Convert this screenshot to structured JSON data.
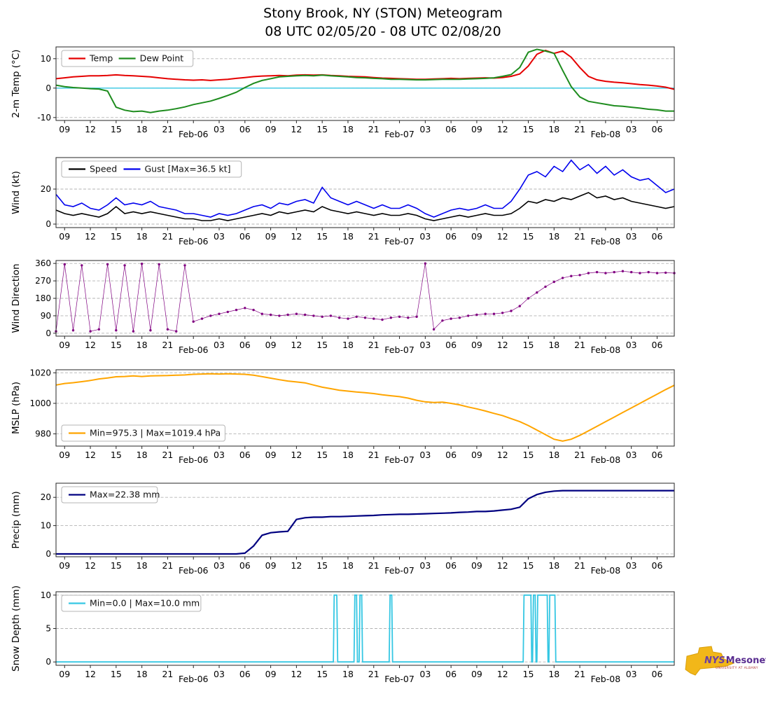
{
  "title": "Stony Brook, NY (STON) Meteogram",
  "subtitle": "08 UTC 02/05/20 - 08 UTC 02/08/20",
  "logo": {
    "nys": "NYS",
    "mesonet": "Mesonet",
    "tagline": "UNIVERSITY AT ALBANY"
  },
  "x_axis": {
    "range": [
      0,
      72
    ],
    "hours": [
      0,
      1,
      2,
      3,
      4,
      5,
      6,
      7,
      8,
      9,
      10,
      11,
      12,
      13,
      14,
      15,
      16,
      17,
      18,
      19,
      20,
      21,
      22,
      23,
      24,
      25,
      26,
      27,
      28,
      29,
      30,
      31,
      32,
      33,
      34,
      35,
      36,
      37,
      38,
      39,
      40,
      41,
      42,
      43,
      44,
      45,
      46,
      47,
      48,
      49,
      50,
      51,
      52,
      53,
      54,
      55,
      56,
      57,
      58,
      59,
      60,
      61,
      62,
      63,
      64,
      65,
      66,
      67,
      68,
      69,
      70,
      71,
      72
    ],
    "ticks": [
      {
        "pos": 1,
        "label": "09"
      },
      {
        "pos": 4,
        "label": "12"
      },
      {
        "pos": 7,
        "label": "15"
      },
      {
        "pos": 10,
        "label": "18"
      },
      {
        "pos": 13,
        "label": "21"
      },
      {
        "pos": 16,
        "label": "Feb-06",
        "date": true
      },
      {
        "pos": 19,
        "label": "03"
      },
      {
        "pos": 22,
        "label": "06"
      },
      {
        "pos": 25,
        "label": "09"
      },
      {
        "pos": 28,
        "label": "12"
      },
      {
        "pos": 31,
        "label": "15"
      },
      {
        "pos": 34,
        "label": "18"
      },
      {
        "pos": 37,
        "label": "21"
      },
      {
        "pos": 40,
        "label": "Feb-07",
        "date": true
      },
      {
        "pos": 43,
        "label": "03"
      },
      {
        "pos": 46,
        "label": "06"
      },
      {
        "pos": 49,
        "label": "09"
      },
      {
        "pos": 52,
        "label": "12"
      },
      {
        "pos": 55,
        "label": "15"
      },
      {
        "pos": 58,
        "label": "18"
      },
      {
        "pos": 61,
        "label": "21"
      },
      {
        "pos": 64,
        "label": "Feb-08",
        "date": true
      },
      {
        "pos": 67,
        "label": "03"
      },
      {
        "pos": 70,
        "label": "06"
      }
    ]
  },
  "chart_data": [
    {
      "id": "temp",
      "type": "line",
      "ylabel": "2-m Temp (°C)",
      "ylim": [
        -11,
        14
      ],
      "yticks": [
        -10,
        0,
        10
      ],
      "hline": {
        "y": 0,
        "color": "#35c7e3"
      },
      "legend": {
        "position": "upper-left",
        "entries": [
          {
            "label": "Temp",
            "color": "#e50000"
          },
          {
            "label": "Dew Point",
            "color": "#1e8c1e"
          }
        ]
      },
      "series": [
        {
          "name": "Temp",
          "color": "#e50000",
          "width": 2,
          "values": [
            3.2,
            3.5,
            3.8,
            4.0,
            4.2,
            4.2,
            4.3,
            4.5,
            4.3,
            4.2,
            4.0,
            3.8,
            3.5,
            3.2,
            3.0,
            2.8,
            2.7,
            2.8,
            2.6,
            2.8,
            3.0,
            3.3,
            3.6,
            3.9,
            4.1,
            4.2,
            4.3,
            4.2,
            4.4,
            4.5,
            4.4,
            4.5,
            4.3,
            4.2,
            4.0,
            3.9,
            3.8,
            3.6,
            3.4,
            3.3,
            3.2,
            3.1,
            3.0,
            3.0,
            3.1,
            3.2,
            3.3,
            3.2,
            3.3,
            3.4,
            3.5,
            3.4,
            3.6,
            4.0,
            4.8,
            7.5,
            11.5,
            12.8,
            11.8,
            12.6,
            10.5,
            7.0,
            4.0,
            2.8,
            2.3,
            2.0,
            1.8,
            1.5,
            1.2,
            1.0,
            0.7,
            0.3,
            -0.4
          ]
        },
        {
          "name": "Dew Point",
          "color": "#1e8c1e",
          "width": 2,
          "values": [
            1.0,
            0.5,
            0.2,
            0.0,
            -0.2,
            -0.3,
            -1.0,
            -6.5,
            -7.5,
            -8.0,
            -7.8,
            -8.3,
            -7.8,
            -7.5,
            -7.0,
            -6.4,
            -5.6,
            -5.0,
            -4.4,
            -3.5,
            -2.5,
            -1.4,
            0.2,
            1.6,
            2.6,
            3.2,
            3.8,
            4.0,
            4.2,
            4.3,
            4.2,
            4.4,
            4.2,
            4.0,
            3.8,
            3.6,
            3.5,
            3.3,
            3.2,
            3.0,
            3.0,
            2.9,
            2.8,
            2.8,
            2.9,
            3.0,
            3.0,
            3.0,
            3.1,
            3.2,
            3.3,
            3.5,
            4.0,
            4.6,
            7.0,
            12.2,
            13.2,
            12.6,
            11.8,
            6.0,
            0.5,
            -3.0,
            -4.5,
            -5.0,
            -5.5,
            -6.0,
            -6.2,
            -6.5,
            -6.8,
            -7.2,
            -7.4,
            -7.8,
            -7.8
          ]
        }
      ]
    },
    {
      "id": "wind",
      "type": "line",
      "ylabel": "Wind (kt)",
      "ylim": [
        -2,
        38
      ],
      "yticks": [
        0,
        20
      ],
      "legend": {
        "position": "upper-left",
        "entries": [
          {
            "label": "Speed",
            "color": "#000000"
          },
          {
            "label": "Gust [Max=36.5 kt]",
            "color": "#0000ee"
          }
        ]
      },
      "series": [
        {
          "name": "Speed",
          "color": "#000000",
          "width": 1.6,
          "values": [
            8,
            6,
            5,
            6,
            5,
            4,
            6,
            10,
            6,
            7,
            6,
            7,
            6,
            5,
            4,
            3,
            3,
            2,
            2,
            3,
            2,
            3,
            4,
            5,
            6,
            5,
            7,
            6,
            7,
            8,
            7,
            10,
            8,
            7,
            6,
            7,
            6,
            5,
            6,
            5,
            5,
            6,
            5,
            3,
            2,
            3,
            4,
            5,
            4,
            5,
            6,
            5,
            5,
            6,
            9,
            13,
            12,
            14,
            13,
            15,
            14,
            16,
            18,
            15,
            16,
            14,
            15,
            13,
            12,
            11,
            10,
            9,
            10
          ]
        },
        {
          "name": "Gust",
          "color": "#0000ee",
          "width": 1.6,
          "values": [
            17,
            11,
            10,
            12,
            9,
            8,
            11,
            15,
            11,
            12,
            11,
            13,
            10,
            9,
            8,
            6,
            6,
            5,
            4,
            6,
            5,
            6,
            8,
            10,
            11,
            9,
            12,
            11,
            13,
            14,
            12,
            21,
            15,
            13,
            11,
            13,
            11,
            9,
            11,
            9,
            9,
            11,
            9,
            6,
            4,
            6,
            8,
            9,
            8,
            9,
            11,
            9,
            9,
            13,
            20,
            28,
            30,
            27,
            33,
            30,
            36.5,
            31,
            34,
            29,
            33,
            28,
            31,
            27,
            25,
            26,
            22,
            18,
            20
          ]
        }
      ]
    },
    {
      "id": "wind-direction",
      "type": "scatter",
      "ylabel": "Wind Direction",
      "ylim": [
        -15,
        375
      ],
      "yticks": [
        0,
        90,
        180,
        270,
        360
      ],
      "legend": null,
      "series": [
        {
          "name": "Wind Direction",
          "color": "#800080",
          "width": 0.7,
          "marker": true,
          "values": [
            10,
            355,
            15,
            350,
            10,
            20,
            355,
            15,
            350,
            10,
            358,
            15,
            355,
            20,
            10,
            350,
            60,
            75,
            90,
            100,
            110,
            120,
            130,
            120,
            100,
            95,
            90,
            95,
            100,
            95,
            90,
            85,
            90,
            80,
            75,
            85,
            80,
            75,
            70,
            80,
            85,
            80,
            85,
            360,
            20,
            65,
            75,
            80,
            90,
            95,
            100,
            100,
            105,
            115,
            140,
            180,
            210,
            240,
            265,
            285,
            295,
            300,
            310,
            315,
            310,
            315,
            320,
            315,
            310,
            315,
            310,
            312,
            310
          ]
        }
      ]
    },
    {
      "id": "mslp",
      "type": "line",
      "ylabel": "MSLP (hPa)",
      "ylim": [
        972,
        1022
      ],
      "yticks": [
        980,
        1000,
        1020
      ],
      "legend": {
        "position": "lower-left",
        "entries": [
          {
            "label": "Min=975.3 | Max=1019.4 hPa",
            "color": "#ffa500"
          }
        ]
      },
      "series": [
        {
          "name": "MSLP",
          "color": "#ffa500",
          "width": 2,
          "values": [
            1012,
            1013,
            1013.5,
            1014.2,
            1015,
            1016,
            1016.6,
            1017.4,
            1017.6,
            1018,
            1017.6,
            1018,
            1018.1,
            1018.2,
            1018.4,
            1018.6,
            1019,
            1019.2,
            1019.4,
            1019.2,
            1019.4,
            1019.2,
            1019,
            1018.4,
            1017.5,
            1016.5,
            1015.5,
            1014.6,
            1014,
            1013.4,
            1012,
            1010.6,
            1009.6,
            1008.6,
            1008,
            1007.4,
            1007,
            1006.4,
            1005.6,
            1005,
            1004.4,
            1003.4,
            1002,
            1001,
            1000.6,
            1000.8,
            1000,
            999,
            997.6,
            996.4,
            995,
            993.4,
            992,
            990,
            988,
            985.5,
            982.5,
            979.5,
            976.5,
            975.3,
            976.5,
            979,
            982,
            985,
            988,
            991,
            994,
            997,
            1000,
            1003,
            1006,
            1009,
            1011.8
          ]
        }
      ]
    },
    {
      "id": "precip",
      "type": "line",
      "ylabel": "Precip (mm)",
      "ylim": [
        -1,
        25
      ],
      "yticks": [
        0,
        10,
        20
      ],
      "legend": {
        "position": "upper-left",
        "entries": [
          {
            "label": "Max=22.38 mm",
            "color": "#000080"
          }
        ]
      },
      "series": [
        {
          "name": "Precip",
          "color": "#000080",
          "width": 2.2,
          "values": [
            0,
            0,
            0,
            0,
            0,
            0,
            0,
            0,
            0,
            0,
            0,
            0,
            0,
            0,
            0,
            0,
            0,
            0,
            0,
            0,
            0,
            0,
            0.3,
            2.8,
            6.6,
            7.5,
            7.8,
            8.0,
            12.2,
            12.8,
            13.0,
            13.0,
            13.2,
            13.2,
            13.3,
            13.4,
            13.5,
            13.6,
            13.8,
            13.9,
            14.0,
            14.0,
            14.1,
            14.2,
            14.3,
            14.4,
            14.5,
            14.7,
            14.8,
            15.0,
            15.0,
            15.2,
            15.5,
            15.8,
            16.5,
            19.5,
            21.0,
            21.8,
            22.2,
            22.38,
            22.38,
            22.38,
            22.38,
            22.38,
            22.38,
            22.38,
            22.38,
            22.38,
            22.38,
            22.38,
            22.38,
            22.38,
            22.38
          ]
        }
      ]
    },
    {
      "id": "snow-depth",
      "type": "line",
      "ylabel": "Snow Depth (mm)",
      "ylim": [
        -0.5,
        10.5
      ],
      "yticks": [
        0,
        5,
        10
      ],
      "legend": {
        "position": "upper-left",
        "entries": [
          {
            "label": "Min=0.0 | Max=10.0 mm",
            "color": "#35c7e3"
          }
        ]
      },
      "series": [
        {
          "name": "Snow Depth",
          "color": "#35c7e3",
          "width": 1.8,
          "x": [
            0,
            32.3,
            32.4,
            32.7,
            32.8,
            34.7,
            34.8,
            35.0,
            35.1,
            35.3,
            35.4,
            35.6,
            35.7,
            38.8,
            38.9,
            39.1,
            39.2,
            54.4,
            54.5,
            55.3,
            55.4,
            55.5,
            55.6,
            55.8,
            55.9,
            56.0,
            56.1,
            57.2,
            57.3,
            57.4,
            57.5,
            58.1,
            58.2,
            72
          ],
          "values": [
            0,
            0,
            10,
            10,
            0,
            0,
            10,
            10,
            0,
            0,
            10,
            10,
            0,
            0,
            10,
            10,
            0,
            0,
            10,
            10,
            0,
            0,
            10,
            10,
            0,
            0,
            10,
            10,
            0,
            0,
            10,
            10,
            0,
            0
          ]
        }
      ]
    }
  ]
}
